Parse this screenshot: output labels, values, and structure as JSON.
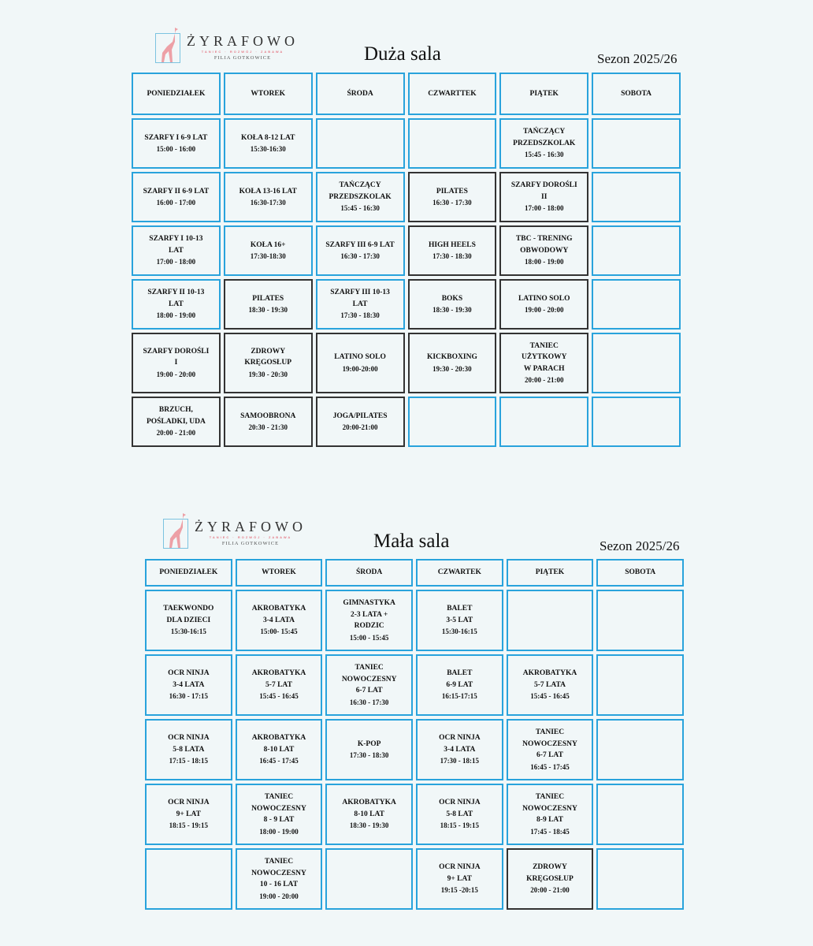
{
  "brand": {
    "name": "ŻYRAFOWO",
    "tagline": "TANIEC · ROZWÓJ · ZABAWA",
    "branch": "FILIA GOTKOWICE",
    "logo_icon": "giraffe-icon",
    "accent": "#e88a93"
  },
  "colors": {
    "cell_border": "#29a3dc",
    "highlight_border": "#333333",
    "background": "#f1f7f8"
  },
  "schedules": [
    {
      "title": "Duża sala",
      "season": "Sezon 2025/26",
      "days": [
        "PONIEDZIAŁEK",
        "WTOREK",
        "ŚRODA",
        "CZWARTTEK",
        "PIĄTEK",
        "SOBOTA"
      ],
      "rows": [
        [
          {
            "name": "SZARFY I 6-9 LAT",
            "time": "15:00 - 16:00"
          },
          {
            "name": "KOŁA 8-12 LAT",
            "time": "15:30-16:30"
          },
          {},
          {},
          {
            "name": "TAŃCZĄCY\nPRZEDSZKOLAK",
            "time": "15:45 - 16:30"
          },
          {}
        ],
        [
          {
            "name": "SZARFY II 6-9 LAT",
            "time": "16:00 - 17:00"
          },
          {
            "name": "KOŁA 13-16 LAT",
            "time": "16:30-17:30"
          },
          {
            "name": "TAŃCZĄCY\nPRZEDSZKOLAK",
            "time": "15:45 - 16:30"
          },
          {
            "name": "PILATES",
            "time": "16:30 - 17:30",
            "border": "dark"
          },
          {
            "name": "SZARFY DOROŚLI\nII",
            "time": "17:00 - 18:00",
            "border": "dark"
          },
          {}
        ],
        [
          {
            "name": "SZARFY I 10-13\nLAT",
            "time": "17:00 - 18:00"
          },
          {
            "name": "KOŁA 16+",
            "time": "17:30-18:30"
          },
          {
            "name": "SZARFY III 6-9 LAT",
            "time": "16:30 - 17:30"
          },
          {
            "name": "HIGH HEELS",
            "time": "17:30 - 18:30",
            "border": "dark"
          },
          {
            "name": "TBC - TRENING\nOBWODOWY",
            "time": "18:00 - 19:00",
            "border": "dark"
          },
          {}
        ],
        [
          {
            "name": "SZARFY II 10-13\nLAT",
            "time": "18:00 - 19:00"
          },
          {
            "name": "PILATES",
            "time": "18:30 - 19:30",
            "border": "dark"
          },
          {
            "name": "SZARFY III 10-13\nLAT",
            "time": "17:30 - 18:30"
          },
          {
            "name": "BOKS",
            "time": "18:30 - 19:30",
            "border": "dark"
          },
          {
            "name": "LATINO SOLO",
            "time": "19:00 - 20:00",
            "border": "dark"
          },
          {}
        ],
        [
          {
            "name": "SZARFY DOROŚLI\nI",
            "time": "19:00 - 20:00",
            "border": "dark"
          },
          {
            "name": "ZDROWY\nKRĘGOSŁUP",
            "time": "19:30 - 20:30",
            "border": "dark"
          },
          {
            "name": "LATINO SOLO",
            "time": "19:00-20:00",
            "border": "dark"
          },
          {
            "name": "KICKBOXING",
            "time": "19:30 - 20:30",
            "border": "dark"
          },
          {
            "name": "TANIEC\nUŻYTKOWY\nW PARACH",
            "time": "20:00 - 21:00",
            "border": "dark"
          },
          {}
        ],
        [
          {
            "name": "BRZUCH,\nPOŚLADKI, UDA",
            "time": "20:00 - 21:00",
            "border": "dark"
          },
          {
            "name": "SAMOOBRONA",
            "time": "20:30 - 21:30",
            "border": "dark"
          },
          {
            "name": "JOGA/PILATES",
            "time": "20:00-21:00",
            "border": "dark"
          },
          {},
          {},
          {}
        ]
      ]
    },
    {
      "title": "Mała sala",
      "season": "Sezon 2025/26",
      "days": [
        "PONIEDZIAŁEK",
        "WTOREK",
        "ŚRODA",
        "CZWARTEK",
        "PIĄTEK",
        "SOBOTA"
      ],
      "rows": [
        [
          {
            "name": "TAEKWONDO\nDLA DZIECI",
            "time": "15:30-16:15"
          },
          {
            "name": "AKROBATYKA\n3-4 LATA",
            "time": "15:00- 15:45"
          },
          {
            "name": "GIMNASTYKA\n2-3 LATA +\nRODZIC",
            "time": "15:00 - 15:45"
          },
          {
            "name": "BALET\n3-5 LAT",
            "time": "15:30-16:15"
          },
          {},
          {}
        ],
        [
          {
            "name": "OCR NINJA\n3-4 LATA",
            "time": "16:30 - 17:15"
          },
          {
            "name": "AKROBATYKA\n5-7 LAT",
            "time": "15:45 - 16:45"
          },
          {
            "name": "TANIEC\nNOWOCZESNY\n6-7 LAT",
            "time": "16:30 - 17:30"
          },
          {
            "name": "BALET\n6-9 LAT",
            "time": "16:15-17:15"
          },
          {
            "name": "AKROBATYKA\n5-7 LATA",
            "time": "15:45 - 16:45"
          },
          {}
        ],
        [
          {
            "name": "OCR NINJA\n5-8 LATA",
            "time": "17:15 - 18:15"
          },
          {
            "name": "AKROBATYKA\n8-10 LAT",
            "time": "16:45 - 17:45"
          },
          {
            "name": "K-POP",
            "time": "17:30 - 18:30"
          },
          {
            "name": "OCR NINJA\n3-4 LATA",
            "time": "17:30 - 18:15"
          },
          {
            "name": "TANIEC\nNOWOCZESNY\n6-7 LAT",
            "time": "16:45 - 17:45"
          },
          {}
        ],
        [
          {
            "name": "OCR NINJA\n9+ LAT",
            "time": "18:15 - 19:15"
          },
          {
            "name": "TANIEC\nNOWOCZESNY\n8 - 9 LAT",
            "time": "18:00 - 19:00"
          },
          {
            "name": "AKROBATYKA\n8-10 LAT",
            "time": "18:30 - 19:30"
          },
          {
            "name": "OCR NINJA\n5-8 LAT",
            "time": "18:15 - 19:15"
          },
          {
            "name": "TANIEC\nNOWOCZESNY\n8-9 LAT",
            "time": "17:45 - 18:45"
          },
          {}
        ],
        [
          {},
          {
            "name": "TANIEC\nNOWOCZESNY\n10 - 16 LAT",
            "time": "19:00 - 20:00"
          },
          {},
          {
            "name": "OCR NINJA\n9+ LAT",
            "time": "19:15 -20:15"
          },
          {
            "name": "ZDROWY\nKRĘGOSŁUP",
            "time": "20:00 - 21:00",
            "border": "dark"
          },
          {}
        ]
      ]
    }
  ]
}
